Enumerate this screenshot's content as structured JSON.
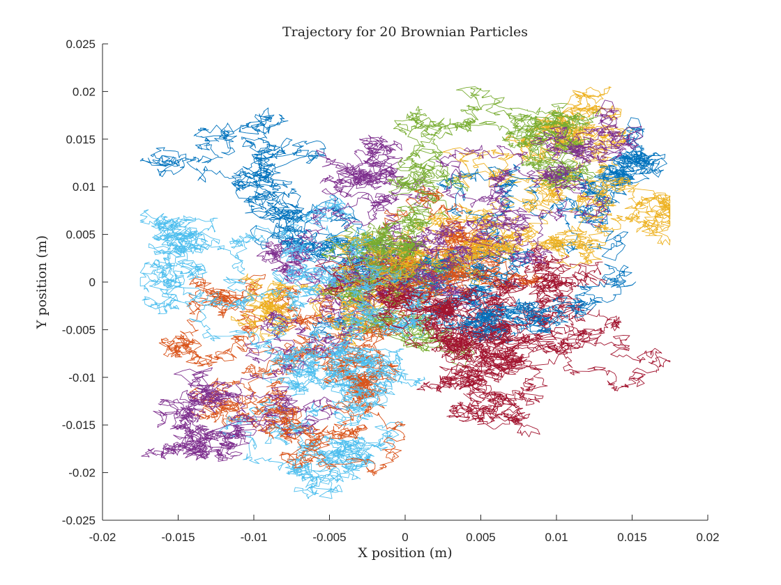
{
  "chart_data": {
    "type": "line",
    "title": "Trajectory for 20 Brownian Particles",
    "xlabel": "X position (m)",
    "ylabel": "Y position (m)",
    "xlim": [
      -0.02,
      0.02
    ],
    "ylim": [
      -0.025,
      0.025
    ],
    "xticks": [
      -0.02,
      -0.015,
      -0.01,
      -0.005,
      0,
      0.005,
      0.01,
      0.015,
      0.02
    ],
    "xtick_labels": [
      "-0.02",
      "-0.015",
      "-0.01",
      "-0.005",
      "0",
      "0.005",
      "0.01",
      "0.015",
      "0.02"
    ],
    "yticks": [
      -0.025,
      -0.02,
      -0.015,
      -0.01,
      -0.005,
      0,
      0.005,
      0.01,
      0.015,
      0.02,
      0.025
    ],
    "ytick_labels": [
      "-0.025",
      "-0.02",
      "-0.015",
      "-0.01",
      "-0.005",
      "0",
      "0.005",
      "0.01",
      "0.015",
      "0.02",
      "0.025"
    ],
    "grid": false,
    "legend": false,
    "series": [
      {
        "color": "#0072BD",
        "waypoints": [
          [
            0,
            0
          ],
          [
            -0.003,
            0.002
          ],
          [
            -0.006,
            0.004
          ],
          [
            -0.009,
            0.007
          ],
          [
            -0.011,
            0.011
          ],
          [
            -0.012,
            0.015
          ],
          [
            -0.009,
            0.013
          ],
          [
            -0.008,
            0.009
          ],
          [
            -0.007,
            0.004
          ],
          [
            -0.004,
            0.001
          ],
          [
            -0.002,
            -0.003
          ]
        ]
      },
      {
        "color": "#D95319",
        "waypoints": [
          [
            0,
            0
          ],
          [
            -0.003,
            -0.004
          ],
          [
            -0.007,
            -0.004
          ],
          [
            -0.012,
            -0.003
          ],
          [
            -0.014,
            -0.004
          ],
          [
            -0.011,
            -0.006
          ],
          [
            -0.008,
            -0.008
          ],
          [
            -0.011,
            -0.012
          ],
          [
            -0.009,
            -0.015
          ],
          [
            -0.007,
            -0.019
          ]
        ]
      },
      {
        "color": "#EDB120",
        "waypoints": [
          [
            0,
            0
          ],
          [
            0.002,
            0.004
          ],
          [
            0.004,
            0.008
          ],
          [
            0.006,
            0.011
          ],
          [
            0.008,
            0.015
          ],
          [
            0.011,
            0.018
          ],
          [
            0.013,
            0.016
          ],
          [
            0.011,
            0.012
          ],
          [
            0.013,
            0.009
          ],
          [
            0.016,
            0.008
          ],
          [
            0.017,
            0.007
          ]
        ]
      },
      {
        "color": "#7E2F8E",
        "waypoints": [
          [
            0,
            0
          ],
          [
            -0.001,
            0.004
          ],
          [
            -0.002,
            0.008
          ],
          [
            -0.001,
            0.011
          ],
          [
            -0.004,
            0.012
          ],
          [
            -0.005,
            0.008
          ],
          [
            -0.007,
            0.003
          ],
          [
            -0.006,
            0.0
          ],
          [
            -0.004,
            -0.003
          ]
        ]
      },
      {
        "color": "#77AC30",
        "waypoints": [
          [
            0,
            0
          ],
          [
            0.0,
            0.004
          ],
          [
            0.001,
            0.009
          ],
          [
            0.002,
            0.013
          ],
          [
            0.003,
            0.017
          ],
          [
            0.006,
            0.018
          ],
          [
            0.008,
            0.015
          ],
          [
            0.01,
            0.014
          ],
          [
            0.012,
            0.012
          ],
          [
            0.011,
            0.01
          ]
        ]
      },
      {
        "color": "#4DBEEE",
        "waypoints": [
          [
            0,
            0
          ],
          [
            -0.002,
            -0.004
          ],
          [
            -0.003,
            -0.008
          ],
          [
            -0.005,
            -0.011
          ],
          [
            -0.007,
            -0.015
          ],
          [
            -0.007,
            -0.019
          ],
          [
            -0.006,
            -0.021
          ],
          [
            -0.004,
            -0.02
          ],
          [
            -0.003,
            -0.018
          ]
        ]
      },
      {
        "color": "#A2142F",
        "waypoints": [
          [
            0,
            0
          ],
          [
            0.002,
            -0.002
          ],
          [
            0.004,
            -0.003
          ],
          [
            0.006,
            -0.002
          ],
          [
            0.008,
            -0.003
          ],
          [
            0.009,
            -0.001
          ],
          [
            0.011,
            -0.004
          ],
          [
            0.013,
            -0.005
          ],
          [
            0.01,
            -0.006
          ]
        ]
      },
      {
        "color": "#0072BD",
        "waypoints": [
          [
            0,
            0
          ],
          [
            0.002,
            0.0
          ],
          [
            0.004,
            -0.002
          ],
          [
            0.006,
            -0.004
          ],
          [
            0.009,
            -0.005
          ],
          [
            0.01,
            -0.003
          ],
          [
            0.008,
            -0.002
          ]
        ]
      },
      {
        "color": "#D95319",
        "waypoints": [
          [
            0,
            0
          ],
          [
            0.002,
            0.001
          ],
          [
            0.004,
            0.001
          ],
          [
            0.005,
            0.003
          ],
          [
            0.003,
            0.005
          ],
          [
            0.002,
            0.003
          ],
          [
            0.001,
            0.0
          ]
        ]
      },
      {
        "color": "#EDB120",
        "waypoints": [
          [
            0,
            0
          ],
          [
            -0.002,
            -0.002
          ],
          [
            -0.004,
            -0.002
          ],
          [
            -0.006,
            -0.002
          ],
          [
            -0.008,
            -0.003
          ],
          [
            -0.01,
            -0.003
          ]
        ]
      },
      {
        "color": "#7E2F8E",
        "waypoints": [
          [
            0,
            0
          ],
          [
            -0.004,
            -0.006
          ],
          [
            -0.008,
            -0.009
          ],
          [
            -0.011,
            -0.012
          ],
          [
            -0.014,
            -0.013
          ],
          [
            -0.016,
            -0.014
          ],
          [
            -0.013,
            -0.016
          ],
          [
            -0.011,
            -0.017
          ],
          [
            -0.013,
            -0.018
          ]
        ]
      },
      {
        "color": "#77AC30",
        "waypoints": [
          [
            0,
            0
          ],
          [
            -0.002,
            0.002
          ],
          [
            -0.003,
            0.004
          ],
          [
            -0.001,
            0.006
          ],
          [
            0.0,
            0.003
          ],
          [
            0.001,
            -0.002
          ],
          [
            0.0,
            -0.006
          ],
          [
            -0.002,
            -0.005
          ]
        ]
      },
      {
        "color": "#4DBEEE",
        "waypoints": [
          [
            0,
            0
          ],
          [
            -0.004,
            0.001
          ],
          [
            -0.008,
            0.003
          ],
          [
            -0.011,
            0.004
          ],
          [
            -0.014,
            0.005
          ],
          [
            -0.015,
            0.003
          ],
          [
            -0.015,
            0.0
          ],
          [
            -0.013,
            -0.002
          ],
          [
            -0.012,
            0.0
          ]
        ]
      },
      {
        "color": "#A2142F",
        "waypoints": [
          [
            0,
            0
          ],
          [
            0.002,
            -0.004
          ],
          [
            0.003,
            -0.007
          ],
          [
            0.004,
            -0.009
          ],
          [
            0.006,
            -0.01
          ],
          [
            0.008,
            -0.011
          ],
          [
            0.006,
            -0.012
          ],
          [
            0.004,
            -0.012
          ]
        ]
      },
      {
        "color": "#0072BD",
        "waypoints": [
          [
            0,
            0
          ],
          [
            0.003,
            0.003
          ],
          [
            0.006,
            0.006
          ],
          [
            0.009,
            0.007
          ],
          [
            0.012,
            0.009
          ],
          [
            0.014,
            0.011
          ],
          [
            0.016,
            0.013
          ],
          [
            0.015,
            0.014
          ]
        ]
      },
      {
        "color": "#D95319",
        "waypoints": [
          [
            0,
            0
          ],
          [
            -0.002,
            -0.005
          ],
          [
            -0.001,
            -0.01
          ],
          [
            -0.003,
            -0.013
          ],
          [
            -0.004,
            -0.015
          ],
          [
            -0.006,
            -0.016
          ],
          [
            -0.004,
            -0.014
          ]
        ]
      },
      {
        "color": "#EDB120",
        "waypoints": [
          [
            0,
            0
          ],
          [
            0.002,
            0.002
          ],
          [
            0.004,
            0.003
          ],
          [
            0.007,
            0.004
          ],
          [
            0.009,
            0.006
          ],
          [
            0.011,
            0.005
          ],
          [
            0.013,
            0.006
          ]
        ]
      },
      {
        "color": "#7E2F8E",
        "waypoints": [
          [
            0,
            0
          ],
          [
            0.002,
            0.003
          ],
          [
            0.004,
            0.006
          ],
          [
            0.006,
            0.009
          ],
          [
            0.008,
            0.011
          ],
          [
            0.01,
            0.012
          ],
          [
            0.012,
            0.013
          ],
          [
            0.014,
            0.014
          ]
        ]
      },
      {
        "color": "#4DBEEE",
        "waypoints": [
          [
            0,
            0
          ],
          [
            -0.002,
            -0.003
          ],
          [
            -0.004,
            -0.006
          ],
          [
            -0.006,
            -0.009
          ],
          [
            -0.004,
            -0.011
          ],
          [
            -0.002,
            -0.012
          ],
          [
            0.0,
            -0.01
          ]
        ]
      },
      {
        "color": "#A2142F",
        "waypoints": [
          [
            0,
            0
          ],
          [
            0.001,
            -0.003
          ],
          [
            0.003,
            -0.006
          ],
          [
            0.005,
            -0.008
          ],
          [
            0.007,
            -0.007
          ],
          [
            0.006,
            -0.005
          ],
          [
            0.004,
            -0.004
          ]
        ]
      }
    ]
  }
}
